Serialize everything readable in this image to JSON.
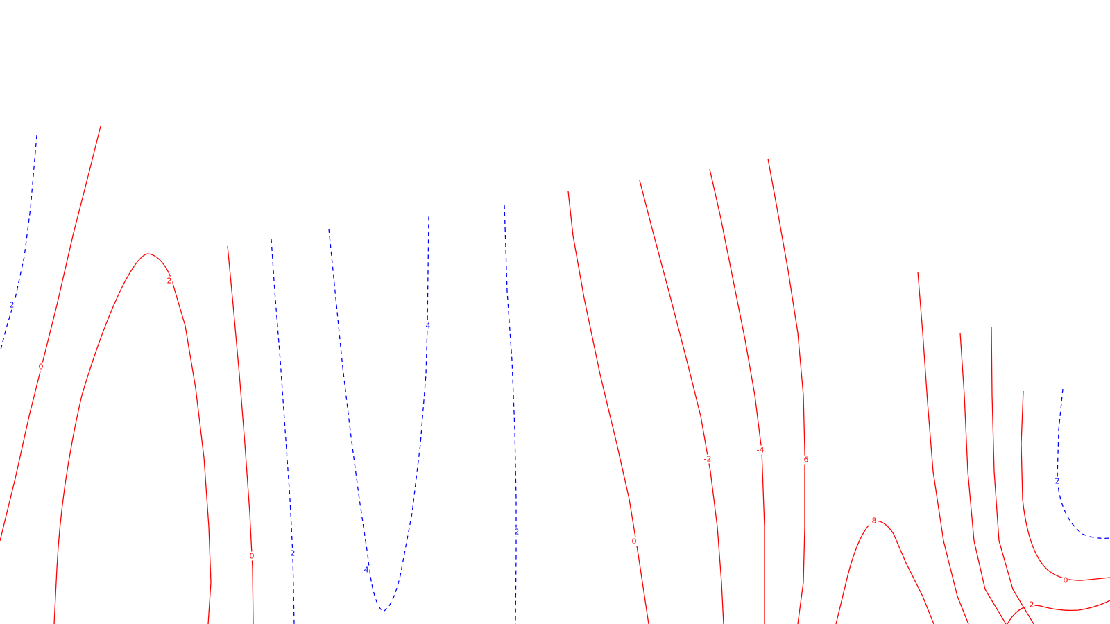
{
  "colors": {
    "negative_and_zero": "#ff0000",
    "positive": "#0000ff",
    "background": "#ffffff"
  },
  "contour_labels": {
    "c_left_2": "2",
    "c_left_0": "0",
    "c_hump_minus2": "-2",
    "c_mid_0": "0",
    "c_mid_2": "2",
    "c_u_4_right": "4",
    "c_u_4_left": "4",
    "c_mid_2b": "2",
    "c_right_0": "0",
    "c_right_minus2": "-2",
    "c_right_minus4": "-4",
    "c_right_minus6": "-6",
    "c_hump_minus8": "-8",
    "c_corner_2": "2",
    "c_corner_0": "0",
    "c_corner_minus2": "-2"
  }
}
